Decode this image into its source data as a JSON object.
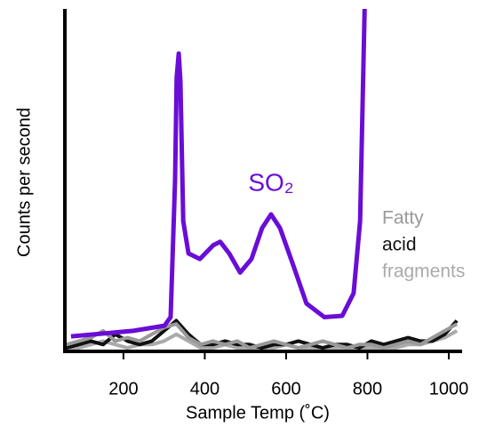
{
  "chart_data": {
    "type": "line",
    "xlabel": "Sample Temp (˚C)",
    "ylabel": "Counts per second",
    "xlim": [
      56,
      1035
    ],
    "ylim": [
      0,
      100
    ],
    "xticks": [
      200,
      400,
      600,
      800,
      1000
    ],
    "series": [
      {
        "name": "SO₂",
        "color": "#6a0dd6",
        "x": [
          71,
          224,
          301,
          316,
          327,
          331,
          336,
          340,
          347,
          360,
          388,
          421,
          438,
          460,
          487,
          515,
          541,
          563,
          585,
          618,
          650,
          694,
          738,
          766,
          782,
          793
        ],
        "values": [
          4.4,
          6,
          7.5,
          10,
          50,
          80,
          87,
          79,
          38,
          28.6,
          27,
          31,
          32,
          28.6,
          23,
          27,
          36,
          40,
          36,
          25,
          14,
          10,
          10.4,
          17,
          38,
          100
        ]
      },
      {
        "name": "Fatty",
        "color": "#999999",
        "x": [
          60,
          90,
          120,
          150,
          180,
          210,
          240,
          270,
          300,
          330,
          360,
          390,
          420,
          450,
          480,
          510,
          540,
          570,
          600,
          630,
          660,
          690,
          720,
          750,
          780,
          810,
          840,
          870,
          900,
          930,
          960,
          990,
          1020
        ],
        "values": [
          2,
          3,
          4,
          6,
          3,
          4,
          3,
          5,
          7,
          8,
          4,
          2,
          3,
          2,
          3,
          1,
          2,
          3,
          2,
          1,
          2,
          3,
          2,
          1,
          2,
          2,
          1,
          2,
          3,
          2,
          4,
          6,
          8
        ]
      },
      {
        "name": "acid",
        "color": "#111111",
        "x": [
          60,
          90,
          120,
          150,
          180,
          210,
          240,
          270,
          300,
          330,
          360,
          390,
          420,
          450,
          480,
          510,
          540,
          570,
          600,
          630,
          660,
          690,
          720,
          750,
          780,
          810,
          840,
          870,
          900,
          930,
          960,
          990,
          1020
        ],
        "values": [
          1,
          2,
          3,
          2,
          5,
          3,
          2,
          3,
          6,
          9,
          5,
          2,
          2,
          3,
          2,
          2,
          1,
          2,
          2,
          3,
          2,
          1,
          2,
          2,
          1,
          3,
          2,
          3,
          4,
          3,
          3,
          5,
          9
        ]
      },
      {
        "name": "fragments",
        "color": "#aaaaaa",
        "x": [
          60,
          90,
          120,
          150,
          180,
          210,
          240,
          270,
          300,
          330,
          360,
          390,
          420,
          450,
          480,
          510,
          540,
          570,
          600,
          630,
          660,
          690,
          720,
          750,
          780,
          810,
          840,
          870,
          900,
          930,
          960,
          990,
          1020
        ],
        "values": [
          1,
          1,
          2,
          3,
          2,
          1,
          2,
          2,
          3,
          5,
          3,
          1,
          1,
          2,
          1,
          1,
          1,
          1,
          2,
          1,
          1,
          1,
          1,
          1,
          1,
          1,
          1,
          1,
          2,
          2,
          3,
          4,
          6
        ]
      }
    ]
  }
}
